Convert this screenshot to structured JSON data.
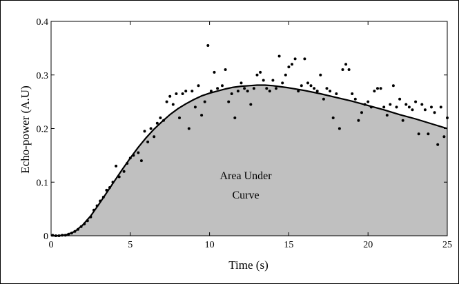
{
  "chart_data": {
    "type": "scatter",
    "xlabel": "Time (s)",
    "ylabel": "Echo-power (A.U)",
    "xlim": [
      0,
      25
    ],
    "ylim": [
      0,
      0.4
    ],
    "xticks": [
      "0",
      "5",
      "10",
      "15",
      "20",
      "25"
    ],
    "yticks": [
      "0",
      "0.1",
      "0.2",
      "0.3",
      "0.4"
    ],
    "annotation": [
      "Area Under",
      "Curve"
    ],
    "fill_color": "#c0c0c0",
    "grid": false,
    "series": [
      {
        "type": "line",
        "x": [
          0,
          0.5,
          1,
          1.5,
          2,
          2.5,
          3,
          3.5,
          4,
          4.5,
          5,
          5.5,
          6,
          6.5,
          7,
          7.5,
          8,
          8.5,
          9,
          9.5,
          10,
          10.5,
          11,
          11.5,
          12,
          12.5,
          13,
          13.5,
          14,
          14.5,
          15,
          16,
          17,
          18,
          19,
          20,
          21,
          22,
          23,
          24,
          25
        ],
        "y": [
          0,
          0,
          0.002,
          0.008,
          0.02,
          0.037,
          0.058,
          0.08,
          0.102,
          0.124,
          0.145,
          0.165,
          0.183,
          0.199,
          0.213,
          0.226,
          0.237,
          0.246,
          0.254,
          0.261,
          0.266,
          0.27,
          0.274,
          0.277,
          0.279,
          0.28,
          0.281,
          0.281,
          0.28,
          0.278,
          0.276,
          0.271,
          0.265,
          0.258,
          0.251,
          0.243,
          0.235,
          0.226,
          0.218,
          0.209,
          0.2
        ]
      },
      {
        "type": "scatter",
        "x": [
          0.1,
          0.3,
          0.5,
          0.7,
          0.9,
          1.1,
          1.3,
          1.5,
          1.7,
          1.9,
          2.1,
          2.3,
          2.5,
          2.7,
          2.9,
          3.1,
          3.3,
          3.5,
          3.7,
          3.9,
          4.1,
          4.3,
          4.6,
          4.8,
          5.0,
          5.2,
          5.5,
          5.7,
          5.9,
          6.1,
          6.3,
          6.5,
          6.7,
          6.9,
          7.1,
          7.3,
          7.5,
          7.7,
          7.9,
          8.1,
          8.3,
          8.5,
          8.7,
          8.9,
          9.1,
          9.3,
          9.5,
          9.7,
          9.9,
          10.1,
          10.3,
          10.5,
          10.8,
          11.0,
          11.2,
          11.4,
          11.6,
          11.8,
          12.0,
          12.2,
          12.4,
          12.6,
          12.8,
          13.0,
          13.2,
          13.4,
          13.6,
          13.8,
          14.0,
          14.2,
          14.4,
          14.6,
          14.8,
          15.0,
          15.2,
          15.4,
          15.6,
          15.8,
          16.0,
          16.2,
          16.4,
          16.6,
          16.8,
          17.0,
          17.2,
          17.4,
          17.6,
          17.8,
          18.0,
          18.2,
          18.4,
          18.6,
          18.8,
          19.0,
          19.2,
          19.4,
          19.6,
          19.8,
          20.0,
          20.2,
          20.4,
          20.6,
          20.8,
          21.0,
          21.2,
          21.4,
          21.6,
          21.8,
          22.0,
          22.2,
          22.4,
          22.6,
          22.8,
          23.0,
          23.2,
          23.4,
          23.6,
          23.8,
          24.0,
          24.2,
          24.4,
          24.6,
          24.8,
          25.0
        ],
        "y": [
          0.001,
          0.0,
          0.0,
          0.001,
          0.001,
          0.003,
          0.005,
          0.008,
          0.012,
          0.017,
          0.022,
          0.028,
          0.035,
          0.048,
          0.056,
          0.065,
          0.072,
          0.085,
          0.09,
          0.1,
          0.13,
          0.11,
          0.12,
          0.135,
          0.145,
          0.15,
          0.155,
          0.14,
          0.195,
          0.175,
          0.2,
          0.185,
          0.21,
          0.22,
          0.215,
          0.25,
          0.26,
          0.245,
          0.265,
          0.22,
          0.265,
          0.27,
          0.2,
          0.27,
          0.24,
          0.28,
          0.225,
          0.25,
          0.355,
          0.27,
          0.305,
          0.275,
          0.28,
          0.31,
          0.25,
          0.265,
          0.22,
          0.27,
          0.285,
          0.275,
          0.27,
          0.245,
          0.275,
          0.3,
          0.305,
          0.29,
          0.275,
          0.27,
          0.29,
          0.275,
          0.335,
          0.285,
          0.3,
          0.315,
          0.32,
          0.33,
          0.27,
          0.28,
          0.33,
          0.285,
          0.28,
          0.275,
          0.27,
          0.3,
          0.255,
          0.275,
          0.27,
          0.22,
          0.265,
          0.2,
          0.31,
          0.32,
          0.31,
          0.265,
          0.255,
          0.215,
          0.23,
          0.245,
          0.25,
          0.24,
          0.27,
          0.275,
          0.275,
          0.24,
          0.225,
          0.245,
          0.28,
          0.24,
          0.255,
          0.215,
          0.245,
          0.24,
          0.235,
          0.25,
          0.19,
          0.245,
          0.235,
          0.19,
          0.24,
          0.23,
          0.17,
          0.24,
          0.185,
          0.22
        ]
      }
    ]
  }
}
